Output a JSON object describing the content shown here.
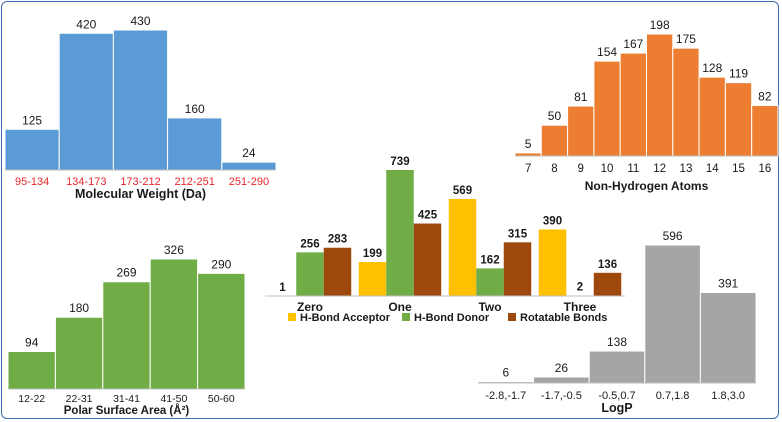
{
  "chart_data": [
    {
      "id": "mw",
      "type": "bar",
      "title": "",
      "xlabel": "Molecular Weight (Da)",
      "ylabel": "",
      "categories": [
        "95-134",
        "134-173",
        "173-212",
        "212-251",
        "251-290"
      ],
      "values": [
        125,
        420,
        430,
        160,
        24
      ],
      "color": "#5b9bd5",
      "tick_color": "#e8262a",
      "legend": "none",
      "grid": false
    },
    {
      "id": "nha",
      "type": "bar",
      "title": "",
      "xlabel": "Non-Hydrogen Atoms",
      "ylabel": "",
      "categories": [
        "7",
        "8",
        "9",
        "10",
        "11",
        "12",
        "13",
        "14",
        "15",
        "16"
      ],
      "values": [
        5,
        50,
        81,
        154,
        167,
        198,
        175,
        128,
        119,
        82
      ],
      "color": "#ed7d31",
      "legend": "none",
      "grid": false
    },
    {
      "id": "hb",
      "type": "bar",
      "title": "",
      "xlabel": "",
      "ylabel": "",
      "categories": [
        "Zero",
        "One",
        "Two",
        "Three"
      ],
      "series": [
        {
          "name": "H-Bond Acceptor",
          "values": [
            1,
            199,
            569,
            390
          ],
          "color": "#ffc000"
        },
        {
          "name": "H-Bond Donor",
          "values": [
            256,
            739,
            162,
            2
          ],
          "color": "#70ad47"
        },
        {
          "name": "Rotatable Bonds",
          "values": [
            283,
            425,
            315,
            136
          ],
          "color": "#9e480e"
        }
      ],
      "legend": "bottom",
      "grid": false
    },
    {
      "id": "psa",
      "type": "bar",
      "title": "",
      "xlabel": "Polar Surface Area (Å²)",
      "ylabel": "",
      "categories": [
        "12-22",
        "22-31",
        "31-41",
        "41-50",
        "50-60"
      ],
      "values": [
        94,
        180,
        269,
        326,
        290
      ],
      "color": "#70ad47",
      "legend": "none",
      "grid": false
    },
    {
      "id": "logp",
      "type": "bar",
      "title": "",
      "xlabel": "LogP",
      "ylabel": "",
      "categories": [
        "-2.8,-1.7",
        "-1.7,-0.5",
        "-0.5,0.7",
        "0.7,1.8",
        "1.8,3.0"
      ],
      "values": [
        6,
        26,
        138,
        596,
        391
      ],
      "color": "#a5a5a5",
      "legend": "none",
      "grid": false
    }
  ]
}
